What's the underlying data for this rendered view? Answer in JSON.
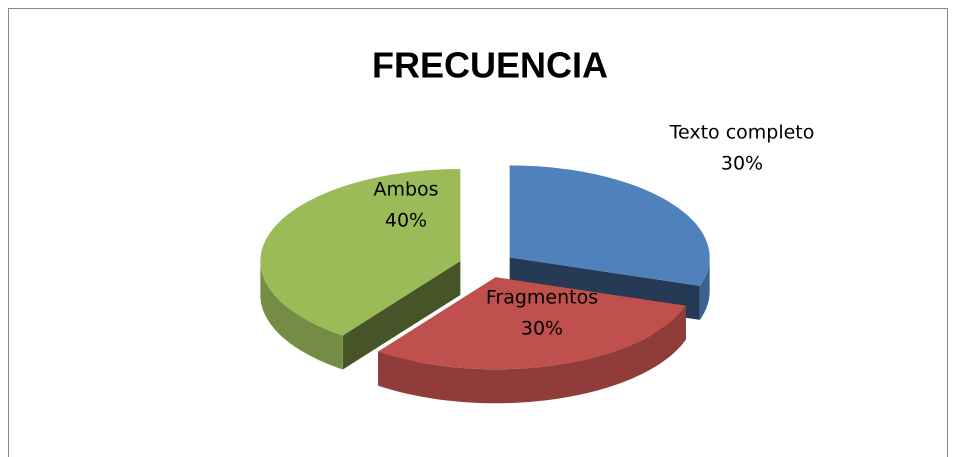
{
  "chart_data": {
    "type": "pie",
    "title": "FRECUENCIA",
    "categories": [
      "Texto completo",
      "Fragmentos",
      "Ambos"
    ],
    "values": [
      30,
      30,
      40
    ],
    "value_labels": [
      "30%",
      "30%",
      "40%"
    ],
    "colors": [
      "#4f81bd",
      "#c0504d",
      "#9bbb59"
    ],
    "exploded": true,
    "three_d": true
  }
}
